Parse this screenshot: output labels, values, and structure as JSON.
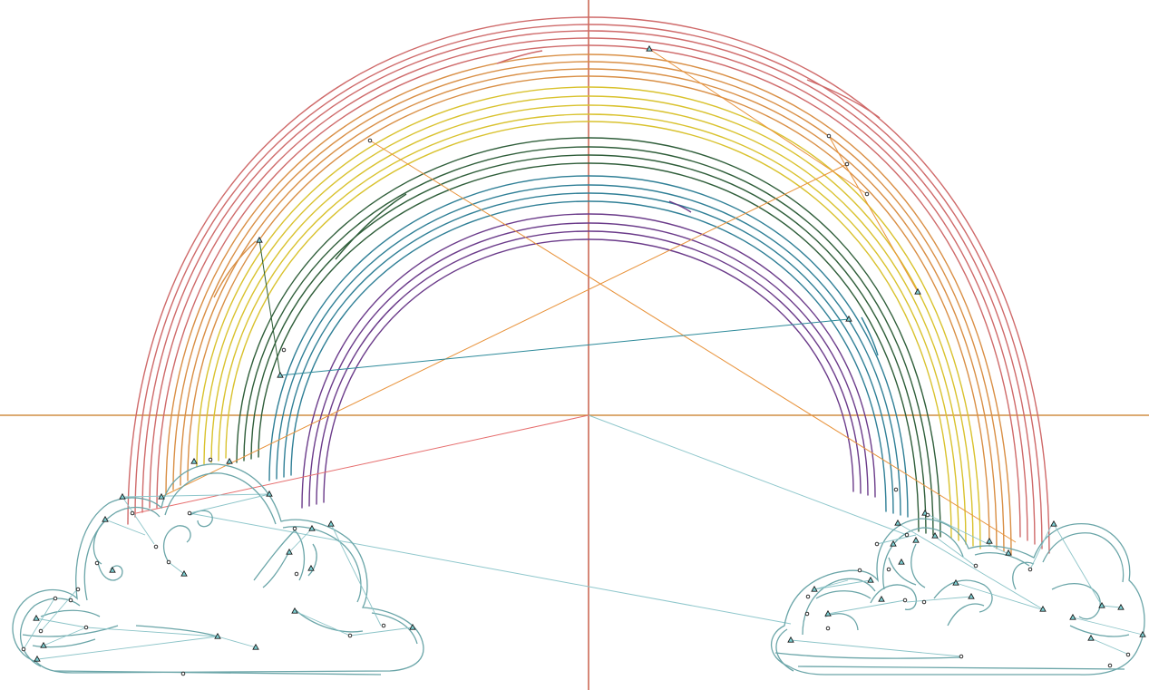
{
  "canvas": {
    "background": "#ffffff",
    "axis_vertical_color": "#c0472e",
    "axis_horizontal_color": "#c6781f"
  },
  "rainbow": {
    "band_colors": [
      "#cf6a6a",
      "#d98f45",
      "#d9c22e",
      "#2f5e3a",
      "#2f7f96",
      "#6b3b8a"
    ],
    "band_names": [
      "red",
      "orange",
      "yellow",
      "green",
      "blue",
      "purple"
    ]
  },
  "clouds": {
    "stroke_color": "#6aa5a8",
    "handle_line_color": "#8cc4c8"
  },
  "guide_lines": {
    "orange": "#e8923a",
    "teal": "#2d8a9a",
    "salmon": "#e66e6e",
    "green": "#2e5e36",
    "cyan": "#8fc7cc"
  },
  "markers": {
    "triangle_icon": "control-point-triangle-icon",
    "circle_icon": "anchor-point-circle-icon"
  }
}
